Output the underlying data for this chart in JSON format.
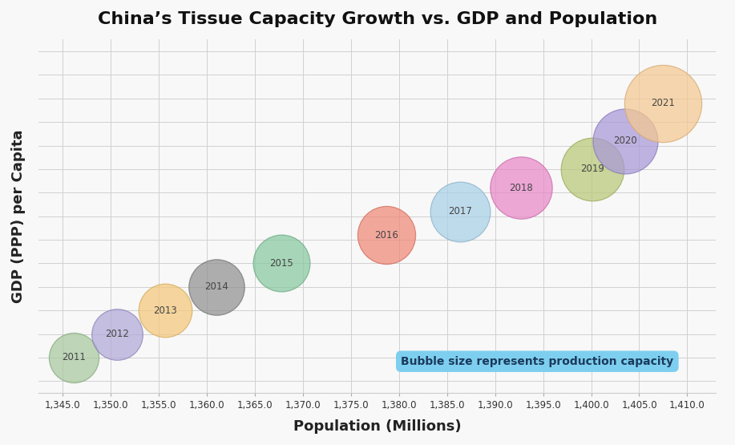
{
  "title": "China’s Tissue Capacity Growth vs. GDP and Population",
  "xlabel": "Population (Millions)",
  "ylabel": "GDP (PPP) per Capita",
  "background_color": "#f8f8f8",
  "grid_color": "#d0d0d0",
  "annotation_text": "Bubble size represents production capacity",
  "annotation_bg": "#7ecfef",
  "annotation_text_color": "#1a3a5c",
  "years": [
    2011,
    2012,
    2013,
    2014,
    2015,
    2016,
    2017,
    2018,
    2019,
    2020,
    2021
  ],
  "population": [
    1346.2,
    1350.7,
    1355.7,
    1361.0,
    1367.8,
    1378.7,
    1386.4,
    1392.7,
    1400.1,
    1403.5,
    1407.5
  ],
  "gdp_index": [
    1.0,
    2.0,
    3.0,
    4.0,
    5.0,
    6.2,
    7.2,
    8.2,
    9.0,
    10.2,
    11.8
  ],
  "bubble_sizes": [
    2000,
    2100,
    2300,
    2500,
    2600,
    2700,
    2900,
    3100,
    3200,
    3400,
    4800
  ],
  "colors": [
    "#a8c8a0",
    "#b0a8d8",
    "#f5c87a",
    "#909090",
    "#88c8a0",
    "#f08878",
    "#a8d0e8",
    "#e888c8",
    "#b8c878",
    "#a898d8",
    "#f5c890"
  ],
  "edge_colors": [
    "#80a878",
    "#8880b8",
    "#d5a858",
    "#707070",
    "#68a880",
    "#d06858",
    "#88b0c8",
    "#c868a8",
    "#98a858",
    "#8878b8",
    "#d5a870"
  ],
  "xlim": [
    1342.5,
    1413.0
  ],
  "ylim": [
    -0.5,
    14.5
  ],
  "xticks": [
    1345.0,
    1350.0,
    1355.0,
    1360.0,
    1365.0,
    1370.0,
    1375.0,
    1380.0,
    1385.0,
    1390.0,
    1395.0,
    1400.0,
    1405.0,
    1410.0
  ],
  "yticks": [
    0,
    1,
    2,
    3,
    4,
    5,
    6,
    7,
    8,
    9,
    10,
    11,
    12,
    13,
    14
  ],
  "title_fontsize": 16,
  "label_fontsize": 13
}
